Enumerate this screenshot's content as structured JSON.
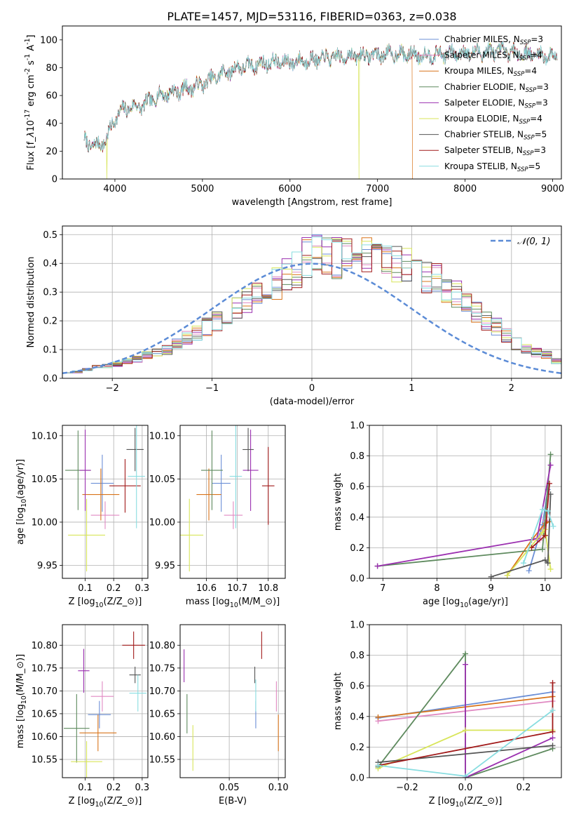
{
  "figure": {
    "title": "PLATE=1457, MJD=53116, FIBERID=0363, z=0.038"
  },
  "legend_entries": [
    {
      "label": "Chabrier MILES, N$_{SSP}$=3",
      "text_main": "Chabrier MILES, N",
      "sub": "SSP",
      "tail": "=3",
      "color": "#6b8fd6"
    },
    {
      "label": "Salpeter MILES, N$_{SSP}$=4",
      "text_main": "Salpeter MILES, N",
      "sub": "SSP",
      "tail": "=4",
      "color": "#e089c2"
    },
    {
      "label": "Kroupa MILES, N$_{SSP}$=4",
      "text_main": "Kroupa MILES, N",
      "sub": "SSP",
      "tail": "=4",
      "color": "#d9741a"
    },
    {
      "label": "Chabrier ELODIE, N$_{SSP}$=3",
      "text_main": "Chabrier ELODIE, N",
      "sub": "SSP",
      "tail": "=3",
      "color": "#5e8a5e"
    },
    {
      "label": "Salpeter ELODIE, N$_{SSP}$=3",
      "text_main": "Salpeter ELODIE, N",
      "sub": "SSP",
      "tail": "=3",
      "color": "#9b30b0"
    },
    {
      "label": "Kroupa ELODIE, N$_{SSP}$=4",
      "text_main": "Kroupa ELODIE, N",
      "sub": "SSP",
      "tail": "=4",
      "color": "#d8e55a"
    },
    {
      "label": "Chabrier STELIB, N$_{SSP}$=5",
      "text_main": "Chabrier STELIB, N",
      "sub": "SSP",
      "tail": "=5",
      "color": "#555555"
    },
    {
      "label": "Salpeter STELIB, N$_{SSP}$=3",
      "text_main": "Salpeter STELIB, N",
      "sub": "SSP",
      "tail": "=3",
      "color": "#a11a1a"
    },
    {
      "label": "Kroupa STELIB, N$_{SSP}$=5",
      "text_main": "Kroupa STELIB, N",
      "sub": "SSP",
      "tail": "=5",
      "color": "#88dde0"
    }
  ],
  "chart_data": [
    {
      "id": "spectrum",
      "type": "line",
      "xlabel": "wavelength [Angstrom, rest frame]",
      "ylabel": "Flux [f$_\\lambda$10$^{-17}$ erg cm$^{-2}$ s$^{-1}$ A$^{-1}$]",
      "xlim": [
        3400,
        9100
      ],
      "ylim": [
        0,
        110
      ],
      "xticks": [
        4000,
        5000,
        6000,
        7000,
        8000,
        9000
      ],
      "yticks": [
        0,
        20,
        40,
        60,
        80,
        100
      ],
      "grid": false,
      "legend_position": "upper right",
      "x_range_shown": [
        3650,
        9050
      ],
      "continuum": {
        "x": [
          3650,
          3700,
          3800,
          3900,
          4000,
          4100,
          4200,
          4300,
          4400,
          4500,
          4700,
          5000,
          5200,
          5400,
          5600,
          5800,
          6000,
          6300,
          6600,
          6900,
          7200,
          7500,
          7800,
          8100,
          8400,
          8700,
          9050
        ],
        "y": [
          28,
          25,
          24,
          28,
          44,
          50,
          52,
          52,
          56,
          60,
          63,
          68,
          75,
          80,
          82,
          84,
          84,
          86,
          88,
          89,
          90,
          89,
          90,
          91,
          92,
          90,
          88
        ]
      },
      "dropouts": [
        {
          "series": "Kroupa ELODIE",
          "x": 3910
        },
        {
          "series": "Kroupa ELODIE",
          "x": 6790
        },
        {
          "series": "Kroupa MILES",
          "x": 7400
        }
      ]
    },
    {
      "id": "residual-histogram",
      "type": "step",
      "xlabel": "(data-model)/error",
      "ylabel": "Normed distribution",
      "xlim": [
        -2.5,
        2.5
      ],
      "ylim": [
        0,
        0.53
      ],
      "xticks": [
        -2,
        -1,
        0,
        1,
        2
      ],
      "yticks": [
        0.0,
        0.1,
        0.2,
        0.3,
        0.4,
        0.5
      ],
      "grid": true,
      "legend_position": "upper right",
      "reference_curve": {
        "label": "$\\mathcal{N}(0, 1)$",
        "display": "𝒩(0, 1)",
        "color": "#5b8bd6",
        "style": "dashed"
      },
      "bin_width": 0.1,
      "bin_start": -2.5,
      "base_profile": [
        0.02,
        0.022,
        0.03,
        0.04,
        0.045,
        0.05,
        0.06,
        0.065,
        0.08,
        0.09,
        0.1,
        0.12,
        0.14,
        0.16,
        0.18,
        0.2,
        0.22,
        0.25,
        0.27,
        0.29,
        0.31,
        0.33,
        0.36,
        0.38,
        0.42,
        0.44,
        0.43,
        0.42,
        0.42,
        0.41,
        0.42,
        0.42,
        0.41,
        0.4,
        0.39,
        0.37,
        0.35,
        0.34,
        0.31,
        0.29,
        0.26,
        0.23,
        0.2,
        0.18,
        0.15,
        0.12,
        0.1,
        0.09,
        0.08,
        0.06
      ]
    },
    {
      "id": "age-vs-Z",
      "type": "errorbar",
      "xlabel": "Z [log$_{10}$(Z/Z$_\\odot$)]",
      "ylabel": "age  [log$_{10}$(age/yr)]",
      "xlim": [
        0.02,
        0.32
      ],
      "ylim": [
        9.935,
        10.112
      ],
      "xticks": [
        0.1,
        0.2,
        0.3
      ],
      "yticks": [
        9.95,
        10.0,
        10.05,
        10.1
      ],
      "grid": true,
      "points": [
        {
          "series": "Chabrier MILES",
          "x": 0.16,
          "y": 10.045,
          "xerr": 0.04,
          "yerr": 0.033
        },
        {
          "series": "Salpeter MILES",
          "x": 0.17,
          "y": 10.008,
          "xerr": 0.05,
          "yerr": 0.016
        },
        {
          "series": "Kroupa MILES",
          "x": 0.155,
          "y": 10.032,
          "xerr": 0.065,
          "yerr": 0.03
        },
        {
          "series": "Chabrier ELODIE",
          "x": 0.075,
          "y": 10.06,
          "xerr": 0.045,
          "yerr": 0.046
        },
        {
          "series": "Salpeter ELODIE",
          "x": 0.1,
          "y": 10.06,
          "xerr": 0.02,
          "yerr": 0.047
        },
        {
          "series": "Kroupa ELODIE",
          "x": 0.105,
          "y": 9.985,
          "xerr": 0.065,
          "yerr": 0.042
        },
        {
          "series": "Chabrier STELIB",
          "x": 0.275,
          "y": 10.084,
          "xerr": 0.03,
          "yerr": 0.025
        },
        {
          "series": "Salpeter STELIB",
          "x": 0.24,
          "y": 10.042,
          "xerr": 0.055,
          "yerr": 0.031
        },
        {
          "series": "Kroupa STELIB",
          "x": 0.28,
          "y": 10.053,
          "xerr": 0.03,
          "yerr": 0.06
        }
      ]
    },
    {
      "id": "age-vs-mass",
      "type": "errorbar",
      "xlabel": "mass [log$_{10}$(M/M$_\\odot$)]",
      "ylabel": "",
      "xlim": [
        10.515,
        10.855
      ],
      "ylim": [
        9.935,
        10.112
      ],
      "xticks": [
        10.6,
        10.7,
        10.8
      ],
      "yticks": [
        9.95,
        10.0,
        10.05,
        10.1
      ],
      "grid": true,
      "points": [
        {
          "series": "Chabrier MILES",
          "x": 10.648,
          "y": 10.045,
          "xerr": 0.03,
          "yerr": 0.033
        },
        {
          "series": "Salpeter MILES",
          "x": 10.687,
          "y": 10.008,
          "xerr": 0.03,
          "yerr": 0.016
        },
        {
          "series": "Kroupa MILES",
          "x": 10.608,
          "y": 10.032,
          "xerr": 0.04,
          "yerr": 0.03
        },
        {
          "series": "Chabrier ELODIE",
          "x": 10.618,
          "y": 10.06,
          "xerr": 0.035,
          "yerr": 0.046
        },
        {
          "series": "Salpeter ELODIE",
          "x": 10.743,
          "y": 10.06,
          "xerr": 0.025,
          "yerr": 0.047
        },
        {
          "series": "Kroupa ELODIE",
          "x": 10.545,
          "y": 9.985,
          "xerr": 0.045,
          "yerr": 0.042
        },
        {
          "series": "Chabrier STELIB",
          "x": 10.735,
          "y": 10.084,
          "xerr": 0.018,
          "yerr": 0.025
        },
        {
          "series": "Salpeter STELIB",
          "x": 10.8,
          "y": 10.042,
          "xerr": 0.02,
          "yerr": 0.045
        },
        {
          "series": "Kroupa STELIB",
          "x": 10.695,
          "y": 10.053,
          "xerr": 0.02,
          "yerr": 0.06
        }
      ]
    },
    {
      "id": "mass-weight-vs-age",
      "type": "line",
      "xlabel": "age  [log$_{10}$(age/yr)]",
      "ylabel": "mass weight",
      "xlim": [
        6.75,
        10.3
      ],
      "ylim": [
        0,
        1
      ],
      "xticks": [
        7,
        8,
        9,
        10
      ],
      "yticks": [
        0.0,
        0.2,
        0.4,
        0.6,
        0.8,
        1.0
      ],
      "grid": true,
      "series": [
        {
          "name": "Chabrier MILES",
          "points": [
            [
              9.7,
              0.05
            ],
            [
              9.95,
              0.35
            ],
            [
              10.05,
              0.58
            ]
          ]
        },
        {
          "name": "Salpeter MILES",
          "points": [
            [
              9.9,
              0.25
            ],
            [
              10.0,
              0.38
            ],
            [
              10.08,
              0.37
            ]
          ]
        },
        {
          "name": "Kroupa MILES",
          "points": [
            [
              9.3,
              0.02
            ],
            [
              9.75,
              0.25
            ],
            [
              10.0,
              0.36
            ],
            [
              10.08,
              0.37
            ]
          ]
        },
        {
          "name": "Chabrier ELODIE",
          "points": [
            [
              6.9,
              0.08
            ],
            [
              9.95,
              0.19
            ],
            [
              10.1,
              0.81
            ]
          ]
        },
        {
          "name": "Salpeter ELODIE",
          "points": [
            [
              6.9,
              0.08
            ],
            [
              9.85,
              0.26
            ],
            [
              10.1,
              0.74
            ]
          ]
        },
        {
          "name": "Kroupa ELODIE",
          "points": [
            [
              9.3,
              0.02
            ],
            [
              9.95,
              0.3
            ],
            [
              10.0,
              0.32
            ],
            [
              10.1,
              0.06
            ]
          ]
        },
        {
          "name": "Chabrier STELIB",
          "points": [
            [
              9.0,
              0.01
            ],
            [
              10.0,
              0.12
            ],
            [
              10.05,
              0.1
            ],
            [
              10.1,
              0.55
            ]
          ]
        },
        {
          "name": "Salpeter STELIB",
          "points": [
            [
              9.75,
              0.2
            ],
            [
              10.0,
              0.28
            ],
            [
              10.08,
              0.62
            ]
          ]
        },
        {
          "name": "Kroupa STELIB",
          "points": [
            [
              9.6,
              0.1
            ],
            [
              9.95,
              0.45
            ],
            [
              10.05,
              0.44
            ],
            [
              10.15,
              0.34
            ]
          ]
        }
      ]
    },
    {
      "id": "mass-vs-Z",
      "type": "errorbar",
      "xlabel": "Z [log$_{10}$(Z/Z$_\\odot$)]",
      "ylabel": "mass [log$_{10}$(M/M$_\\odot$)]",
      "xlim": [
        0.02,
        0.32
      ],
      "ylim": [
        10.51,
        10.845
      ],
      "xticks": [
        0.1,
        0.2,
        0.3
      ],
      "yticks": [
        10.55,
        10.6,
        10.65,
        10.7,
        10.75,
        10.8
      ],
      "grid": true,
      "points": [
        {
          "series": "Chabrier MILES",
          "x": 0.15,
          "y": 10.648,
          "xerr": 0.04,
          "yerr": 0.03
        },
        {
          "series": "Salpeter MILES",
          "x": 0.16,
          "y": 10.688,
          "xerr": 0.04,
          "yerr": 0.033
        },
        {
          "series": "Kroupa MILES",
          "x": 0.145,
          "y": 10.608,
          "xerr": 0.065,
          "yerr": 0.04
        },
        {
          "series": "Chabrier ELODIE",
          "x": 0.07,
          "y": 10.618,
          "xerr": 0.045,
          "yerr": 0.075
        },
        {
          "series": "Salpeter ELODIE",
          "x": 0.095,
          "y": 10.744,
          "xerr": 0.02,
          "yerr": 0.048
        },
        {
          "series": "Kroupa ELODIE",
          "x": 0.105,
          "y": 10.545,
          "xerr": 0.055,
          "yerr": 0.045
        },
        {
          "series": "Chabrier STELIB",
          "x": 0.275,
          "y": 10.735,
          "xerr": 0.02,
          "yerr": 0.018
        },
        {
          "series": "Salpeter STELIB",
          "x": 0.27,
          "y": 10.8,
          "xerr": 0.04,
          "yerr": 0.03
        },
        {
          "series": "Kroupa STELIB",
          "x": 0.285,
          "y": 10.695,
          "xerr": 0.03,
          "yerr": 0.04
        }
      ]
    },
    {
      "id": "mass-vs-EBV",
      "type": "errorbar",
      "xlabel": "E(B-V)",
      "ylabel": "",
      "xlim": [
        0.0,
        0.107
      ],
      "ylim": [
        10.51,
        10.845
      ],
      "xticks": [
        0.05,
        0.1
      ],
      "yticks": [
        10.55,
        10.6,
        10.65,
        10.7,
        10.75,
        10.8
      ],
      "grid": true,
      "points": [
        {
          "series": "Chabrier MILES",
          "x": 0.077,
          "y": 10.648,
          "xerr": 0,
          "yerr": 0.03
        },
        {
          "series": "Salpeter MILES",
          "x": 0.098,
          "y": 10.688,
          "xerr": 0,
          "yerr": 0.033
        },
        {
          "series": "Kroupa MILES",
          "x": 0.1,
          "y": 10.608,
          "xerr": 0,
          "yerr": 0.04
        },
        {
          "series": "Chabrier ELODIE",
          "x": 0.007,
          "y": 10.65,
          "xerr": 0,
          "yerr": 0.043
        },
        {
          "series": "Salpeter ELODIE",
          "x": 0.004,
          "y": 10.755,
          "xerr": 0,
          "yerr": 0.036
        },
        {
          "series": "Kroupa ELODIE",
          "x": 0.013,
          "y": 10.575,
          "xerr": 0,
          "yerr": 0.05
        },
        {
          "series": "Chabrier STELIB",
          "x": 0.076,
          "y": 10.735,
          "xerr": 0,
          "yerr": 0.018
        },
        {
          "series": "Salpeter STELIB",
          "x": 0.083,
          "y": 10.8,
          "xerr": 0,
          "yerr": 0.03
        },
        {
          "series": "Kroupa STELIB",
          "x": 0.077,
          "y": 10.69,
          "xerr": 0,
          "yerr": 0.035
        }
      ]
    },
    {
      "id": "mass-weight-vs-Z",
      "type": "line",
      "xlabel": "Z [log$_{10}$(Z/Z$_\\odot$)]",
      "ylabel": "mass weight",
      "xlim": [
        -0.33,
        0.33
      ],
      "ylim": [
        0,
        1
      ],
      "xticks": [
        -0.2,
        0.0,
        0.2
      ],
      "yticks": [
        0.0,
        0.2,
        0.4,
        0.6,
        0.8,
        1.0
      ],
      "grid": true,
      "series": [
        {
          "name": "Chabrier MILES",
          "points": [
            [
              -0.3,
              0.39
            ],
            [
              0.3,
              0.56
            ]
          ]
        },
        {
          "name": "Salpeter MILES",
          "points": [
            [
              -0.3,
              0.37
            ],
            [
              0.3,
              0.5
            ]
          ]
        },
        {
          "name": "Kroupa MILES",
          "points": [
            [
              -0.3,
              0.395
            ],
            [
              0.3,
              0.53
            ]
          ]
        },
        {
          "name": "Chabrier ELODIE",
          "points": [
            [
              -0.3,
              0.07
            ],
            [
              0.0,
              0.81
            ],
            [
              0.0,
              0.0
            ],
            [
              0.3,
              0.19
            ]
          ]
        },
        {
          "name": "Salpeter ELODIE",
          "points": [
            [
              0.0,
              0.74
            ],
            [
              0.0,
              0.0
            ],
            [
              0.3,
              0.26
            ]
          ]
        },
        {
          "name": "Kroupa ELODIE",
          "points": [
            [
              -0.3,
              0.06
            ],
            [
              0.0,
              0.31
            ],
            [
              0.3,
              0.31
            ]
          ]
        },
        {
          "name": "Chabrier STELIB",
          "points": [
            [
              -0.3,
              0.1
            ],
            [
              0.3,
              0.21
            ]
          ]
        },
        {
          "name": "Salpeter STELIB",
          "points": [
            [
              -0.3,
              0.08
            ],
            [
              0.3,
              0.3
            ],
            [
              0.3,
              0.62
            ]
          ]
        },
        {
          "name": "Kroupa STELIB",
          "points": [
            [
              -0.3,
              0.08
            ],
            [
              0.0,
              0.01
            ],
            [
              0.3,
              0.44
            ]
          ]
        }
      ]
    }
  ]
}
